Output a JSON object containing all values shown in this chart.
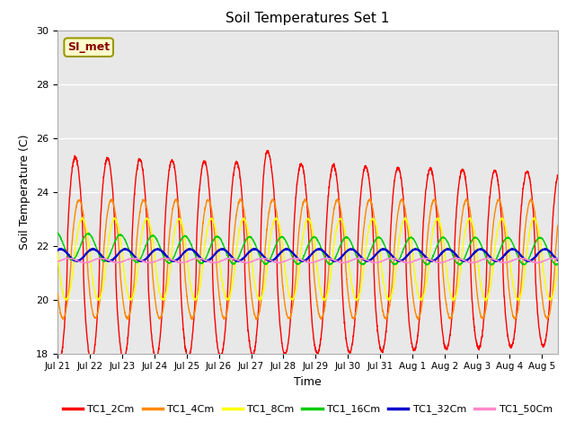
{
  "title": "Soil Temperatures Set 1",
  "xlabel": "Time",
  "ylabel": "Soil Temperature (C)",
  "ylim": [
    18,
    30
  ],
  "yticks": [
    18,
    20,
    22,
    24,
    26,
    28,
    30
  ],
  "annotation_text": "SI_met",
  "legend_labels": [
    "TC1_2Cm",
    "TC1_4Cm",
    "TC1_8Cm",
    "TC1_16Cm",
    "TC1_32Cm",
    "TC1_50Cm"
  ],
  "line_colors": [
    "#ff0000",
    "#ff8800",
    "#ffff00",
    "#00cc00",
    "#0000cc",
    "#ff88cc"
  ],
  "line_widths": [
    1.0,
    1.0,
    1.0,
    1.0,
    1.5,
    1.0
  ],
  "background_color": "#e8e8e8",
  "n_days": 15.5,
  "x_tick_labels": [
    "Jul 21",
    "Jul 22",
    "Jul 23",
    "Jul 24",
    "Jul 25",
    "Jul 26",
    "Jul 27",
    "Jul 28",
    "Jul 29",
    "Jul 30",
    "Jul 31",
    "Aug 1",
    "Aug 2",
    "Aug 3",
    "Aug 4",
    "Aug 5"
  ],
  "x_tick_positions": [
    0,
    1,
    2,
    3,
    4,
    5,
    6,
    7,
    8,
    9,
    10,
    11,
    12,
    13,
    14,
    15
  ]
}
